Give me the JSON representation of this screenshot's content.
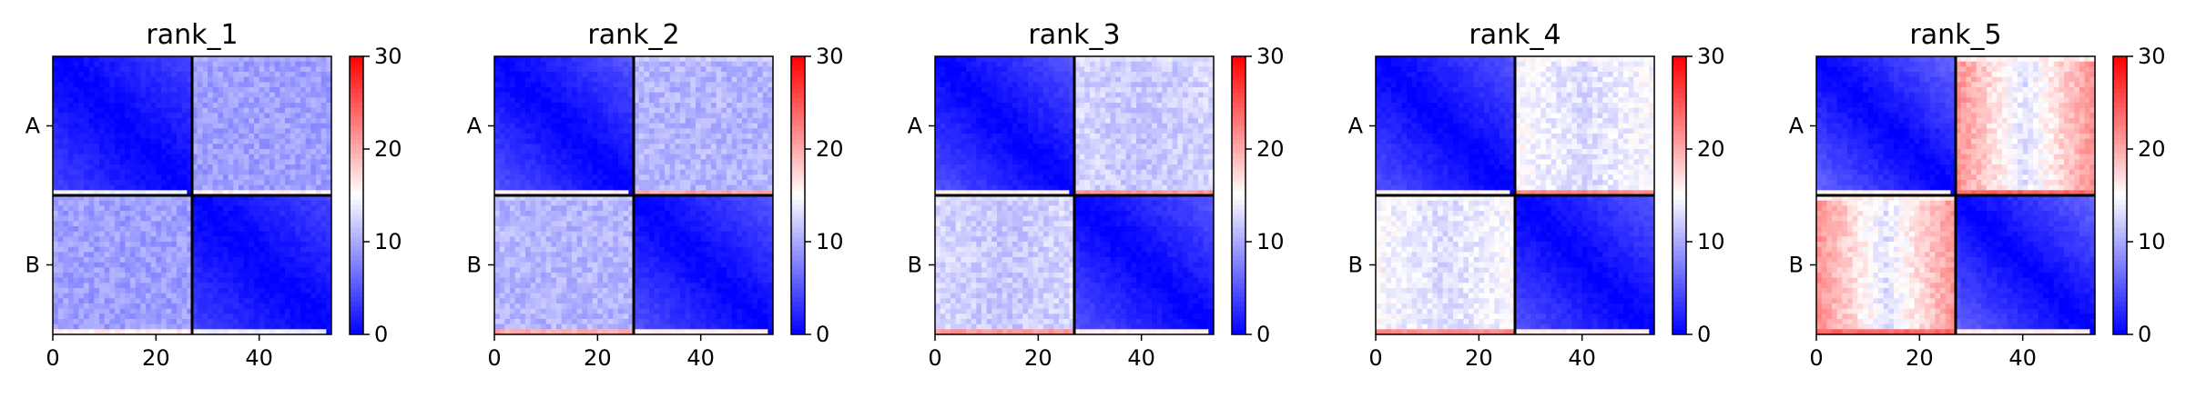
{
  "chart_data": {
    "type": "heatmap",
    "grid_size": 54,
    "block_boundary": 27,
    "x_ticks": [
      0,
      20,
      40
    ],
    "x_range": [
      0,
      54
    ],
    "y_block_labels": [
      "A",
      "B"
    ],
    "colorbar": {
      "min": 0,
      "max": 30,
      "ticks": [
        0,
        10,
        20,
        30
      ],
      "tick_labels": [
        "0",
        "10",
        "20",
        "30"
      ],
      "colormap": "bwr",
      "colors": {
        "low": "#0000ff",
        "mid": "#ffffff",
        "high": "#ff0000"
      }
    },
    "panels": [
      {
        "title": "rank_1",
        "diag_min": 0,
        "diag_max": 4,
        "off_base": 9,
        "off_edge": 10,
        "off_wing": 0,
        "bright_row": 14,
        "bright_row_cross": 16
      },
      {
        "title": "rank_2",
        "diag_min": 0,
        "diag_max": 5,
        "off_base": 10,
        "off_edge": 12,
        "off_wing": 0,
        "bright_row": 16,
        "bright_row_cross": 20
      },
      {
        "title": "rank_3",
        "diag_min": 0,
        "diag_max": 5,
        "off_base": 11,
        "off_edge": 13,
        "off_wing": 1,
        "bright_row": 16,
        "bright_row_cross": 21
      },
      {
        "title": "rank_4",
        "diag_min": 0,
        "diag_max": 5,
        "off_base": 12,
        "off_edge": 15,
        "off_wing": 2,
        "bright_row": 16,
        "bright_row_cross": 22
      },
      {
        "title": "rank_5",
        "diag_min": 0,
        "diag_max": 6,
        "off_base": 12,
        "off_edge": 16,
        "off_wing": 8,
        "bright_row": 16,
        "bright_row_cross": 24
      }
    ]
  }
}
